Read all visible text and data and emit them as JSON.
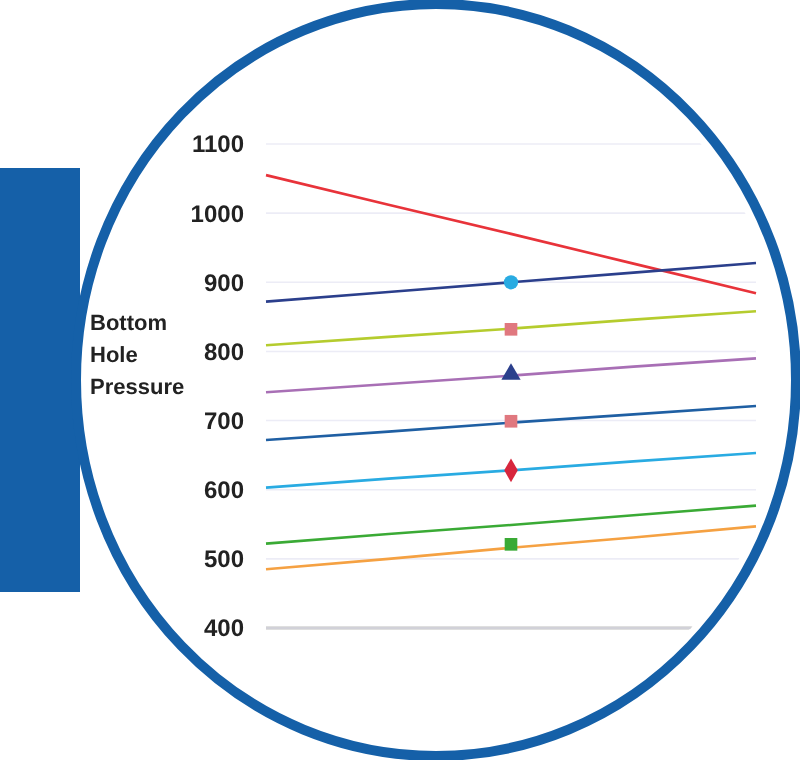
{
  "chart_data": {
    "type": "line",
    "ylabel": "Bottom Hole Pressure",
    "categories": [
      null,
      null,
      null,
      null,
      null
    ],
    "ylim": [
      400,
      1100
    ],
    "yticks": [
      400,
      500,
      600,
      700,
      800,
      900,
      1000,
      1100
    ],
    "grid": "y",
    "line_style": "solid",
    "ref_lines": [
      {
        "axis": "y",
        "value": 400,
        "color": "#808080"
      }
    ],
    "series": [
      {
        "color": "#e8333a",
        "values": [
          1055,
          1012,
          970,
          927,
          884
        ]
      },
      {
        "color": "#2b3f8c",
        "values": [
          872,
          886,
          900,
          914,
          928
        ]
      },
      {
        "color": "#b5cc2e",
        "values": [
          809,
          821,
          833,
          846,
          858
        ]
      },
      {
        "color": "#a86fb5",
        "values": [
          741,
          753,
          765,
          778,
          790
        ]
      },
      {
        "color": "#1f5fa3",
        "values": [
          672,
          684,
          697,
          709,
          721
        ]
      },
      {
        "color": "#29abe2",
        "values": [
          603,
          616,
          628,
          641,
          653
        ]
      },
      {
        "color": "#3aaa35",
        "values": [
          522,
          536,
          549,
          563,
          577
        ]
      },
      {
        "color": "#f5a142",
        "values": [
          485,
          500,
          516,
          531,
          547
        ]
      },
      {
        "type": "scatter",
        "marker": "circle",
        "color": "#29abe2",
        "values": [
          null,
          null,
          900,
          null,
          null
        ]
      },
      {
        "type": "scatter",
        "marker": "square",
        "color": "#e0787f",
        "values": [
          null,
          null,
          832,
          null,
          null
        ]
      },
      {
        "type": "scatter",
        "marker": "triangle",
        "color": "#2b3f8c",
        "values": [
          null,
          null,
          767,
          null,
          null
        ]
      },
      {
        "type": "scatter",
        "marker": "square",
        "color": "#e0787f",
        "values": [
          null,
          null,
          699,
          null,
          null
        ]
      },
      {
        "type": "scatter",
        "marker": "diamond",
        "color": "#d7263d",
        "values": [
          null,
          null,
          628,
          null,
          null
        ]
      },
      {
        "type": "scatter",
        "marker": "square",
        "color": "#3aaa35",
        "values": [
          null,
          null,
          521,
          null,
          null
        ]
      }
    ]
  }
}
